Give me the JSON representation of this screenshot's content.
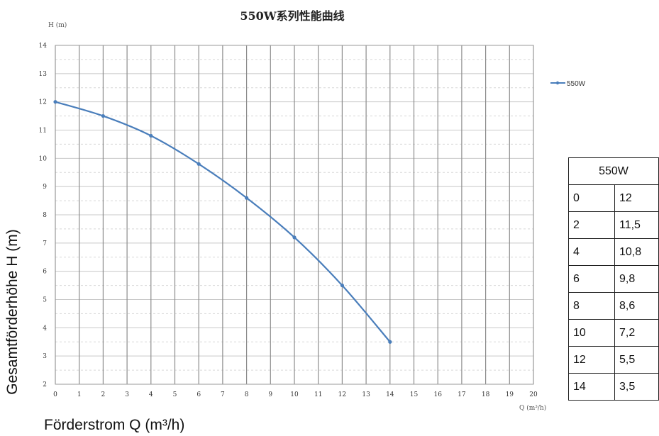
{
  "chart_data": {
    "type": "line",
    "title": "550W系列性能曲线",
    "y_axis_caption": "H (m)",
    "x_axis_caption": "Q (m³/h)",
    "ylabel": "Gesamtförderhöhe H (m)",
    "xlabel_main": "Förderstrom Q (m³/h)",
    "xlim": [
      0,
      20
    ],
    "ylim": [
      2,
      14
    ],
    "x_ticks": [
      "0",
      "1",
      "2",
      "3",
      "4",
      "5",
      "6",
      "7",
      "8",
      "9",
      "10",
      "11",
      "12",
      "13",
      "14",
      "15",
      "16",
      "17",
      "18",
      "19",
      "20"
    ],
    "y_ticks": [
      "2",
      "3",
      "4",
      "5",
      "6",
      "7",
      "8",
      "9",
      "10",
      "11",
      "12",
      "13",
      "14"
    ],
    "grid": true,
    "legend_position": "right",
    "series": [
      {
        "name": "550W",
        "color": "#4a7ebb",
        "x": [
          0,
          2,
          4,
          6,
          8,
          10,
          12,
          14
        ],
        "y": [
          12,
          11.5,
          10.8,
          9.8,
          8.6,
          7.2,
          5.5,
          3.5
        ]
      }
    ]
  },
  "table": {
    "header": "550W",
    "rows": [
      [
        "0",
        "12"
      ],
      [
        "2",
        "11,5"
      ],
      [
        "4",
        "10,8"
      ],
      [
        "6",
        "9,8"
      ],
      [
        "8",
        "8,6"
      ],
      [
        "10",
        "7,2"
      ],
      [
        "12",
        "5,5"
      ],
      [
        "14",
        "3,5"
      ]
    ]
  }
}
